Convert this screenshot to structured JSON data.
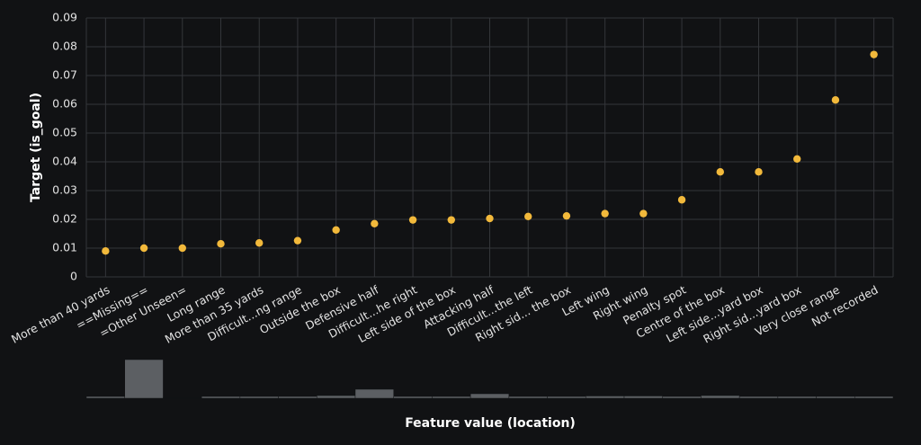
{
  "chart_data": {
    "type": "scatter",
    "ylabel": "Target (is_goal)",
    "xlabel": "Feature value (location)",
    "categories": [
      "More than 40 yards",
      "==Missing==",
      "=Other Unseen=",
      "Long range",
      "More than 35 yards",
      "Difficult...ng range",
      "Outside the box",
      "Defensive half",
      "Difficult...he right",
      "Left side of the box",
      "Attacking half",
      "Difficult...the left",
      "Right sid... the box",
      "Left wing",
      "Right wing",
      "Penalty spot",
      "Centre of the box",
      "Left side...yard box",
      "Right sid...yard box",
      "Very close range",
      "Not recorded"
    ],
    "values": [
      0.009,
      0.01,
      0.01,
      0.0115,
      0.0118,
      0.0126,
      0.0163,
      0.0185,
      0.0198,
      0.0198,
      0.0203,
      0.021,
      0.0212,
      0.022,
      0.022,
      0.0268,
      0.0365,
      0.0365,
      0.041,
      0.0615,
      0.0773
    ],
    "color": "#f2b93b",
    "ylim": [
      0,
      0.09
    ],
    "yticks": [
      0,
      0.01,
      0.02,
      0.03,
      0.04,
      0.05,
      0.06,
      0.07,
      0.08,
      0.09
    ],
    "grid": true,
    "count_bars": {
      "type": "bar",
      "color": "#5c5f63",
      "values": [
        2,
        43,
        0.5,
        2,
        2,
        2,
        3,
        10,
        2,
        2,
        5,
        2,
        2,
        2.5,
        2.5,
        2,
        3,
        2,
        2,
        2,
        2
      ]
    }
  }
}
